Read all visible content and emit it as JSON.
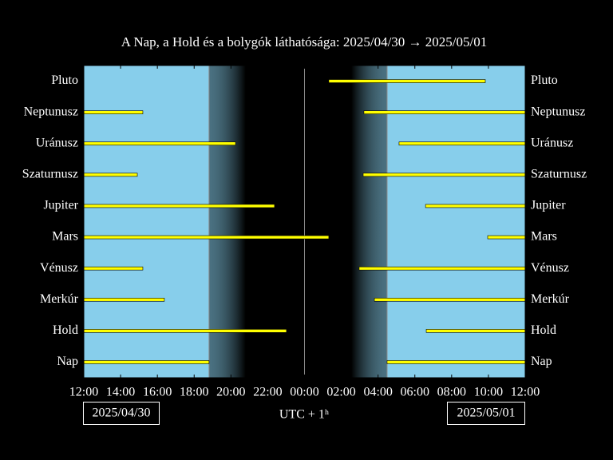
{
  "chart_data": {
    "type": "timeline",
    "title": "A Nap, a Hold és a bolygók láthatósága: 2025/04/30 → 2025/05/01",
    "x_label": "UTC + 1ʰ",
    "start_date": "2025/04/30",
    "end_date": "2025/05/01",
    "categories": [
      "Pluto",
      "Neptunusz",
      "Uránusz",
      "Szaturnusz",
      "Jupiter",
      "Mars",
      "Vénusz",
      "Merkúr",
      "Hold",
      "Nap"
    ],
    "intervals": [
      [
        [
          13.32,
          21.83
        ]
      ],
      [
        [
          0,
          3.21
        ],
        [
          15.23,
          24
        ]
      ],
      [
        [
          0,
          8.25
        ],
        [
          17.14,
          24
        ]
      ],
      [
        [
          0,
          2.91
        ],
        [
          15.19,
          24
        ]
      ],
      [
        [
          0,
          10.37
        ],
        [
          18.58,
          24
        ]
      ],
      [
        [
          0,
          13.32
        ],
        [
          21.96,
          24
        ]
      ],
      [
        [
          0,
          3.21
        ],
        [
          14.97,
          24
        ]
      ],
      [
        [
          0,
          4.38
        ],
        [
          15.8,
          24
        ]
      ],
      [
        [
          0,
          11.02
        ],
        [
          18.62,
          24
        ]
      ],
      [
        [
          0,
          6.81
        ],
        [
          16.49,
          24
        ]
      ]
    ],
    "color": "#ffff00",
    "day_color": "#87ceeb",
    "dusk": [
      6.81,
      8.8
    ],
    "dawn": [
      14.55,
      16.49
    ],
    "reference_lines": [
      6.81,
      12,
      16.49
    ],
    "xlim": [
      0,
      24
    ],
    "xticks": [
      {
        "value": 0,
        "label": "12:00"
      },
      {
        "value": 2,
        "label": "14:00"
      },
      {
        "value": 4,
        "label": "16:00"
      },
      {
        "value": 6,
        "label": "18:00"
      },
      {
        "value": 8,
        "label": "20:00"
      },
      {
        "value": 10,
        "label": "22:00"
      },
      {
        "value": 12,
        "label": "00:00"
      },
      {
        "value": 14,
        "label": "02:00"
      },
      {
        "value": 16,
        "label": "04:00"
      },
      {
        "value": 18,
        "label": "06:00"
      },
      {
        "value": 20,
        "label": "08:00"
      },
      {
        "value": 22,
        "label": "10:00"
      },
      {
        "value": 24,
        "label": "12:00"
      }
    ]
  }
}
